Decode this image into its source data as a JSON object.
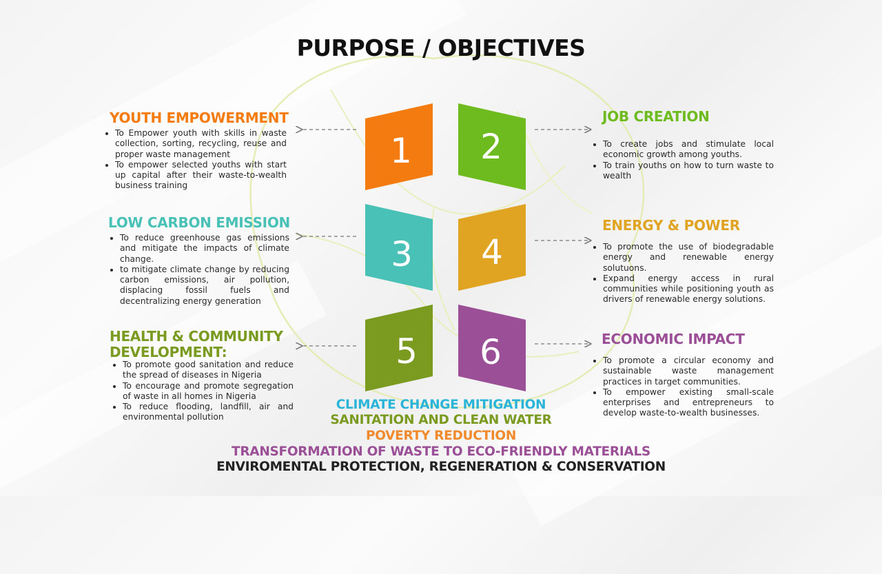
{
  "title": "PURPOSE / OBJECTIVES",
  "colors": {
    "orange": "#f47b0f",
    "green": "#6dbb1e",
    "teal": "#49c1b6",
    "gold": "#e0a322",
    "olive": "#7a9a20",
    "purple": "#9b4f96",
    "sky": "#2ab5d8",
    "dark": "#222222"
  },
  "numbers": [
    "1",
    "2",
    "3",
    "4",
    "5",
    "6"
  ],
  "objectives": [
    {
      "heading": "YOUTH EMPOWERMENT",
      "bullets": [
        "To Empower youth with skills in waste collection, sorting, recycling, reuse and proper waste management",
        "To empower selected youths with start up capital after their waste-to-wealth business training"
      ]
    },
    {
      "heading": "JOB CREATION",
      "bullets": [
        "To create jobs and stimulate local economic growth among youths.",
        "To train youths on how to turn waste to wealth"
      ]
    },
    {
      "heading": "LOW CARBON EMISSION",
      "bullets": [
        "To reduce greenhouse gas emissions and mitigate the impacts of climate change.",
        "to mitigate climate change by reducing carbon emissions, air pollution, displacing fossil fuels and decentralizing energy generation"
      ]
    },
    {
      "heading": "ENERGY & POWER",
      "bullets": [
        "To promote the use of biodegradable energy and renewable energy solutuons.",
        "Expand energy access in rural communities while positioning youth as drivers of renewable energy solutions."
      ]
    },
    {
      "heading": "HEALTH & COMMUNITY DEVELOPMENT:",
      "bullets": [
        "To promote good sanitation and reduce the spread of diseases in Nigeria",
        "To encourage and promote segregation of waste in all homes in Nigeria",
        "To reduce flooding, landfill, air and environmental pollution"
      ]
    },
    {
      "heading": "ECONOMIC IMPACT",
      "bullets": [
        "To promote a circular economy and sustainable waste management practices in target communities.",
        "To empower existing small-scale enterprises and entrepreneurs to develop waste-to-wealth businesses."
      ]
    }
  ],
  "footer": [
    "CLIMATE CHANGE MITIGATION",
    "SANITATION AND CLEAN WATER",
    "POVERTY REDUCTION",
    "TRANSFORMATION OF WASTE TO ECO-FRIENDLY MATERIALS",
    "ENVIROMENTAL PROTECTION, REGENERATION & CONSERVATION"
  ]
}
